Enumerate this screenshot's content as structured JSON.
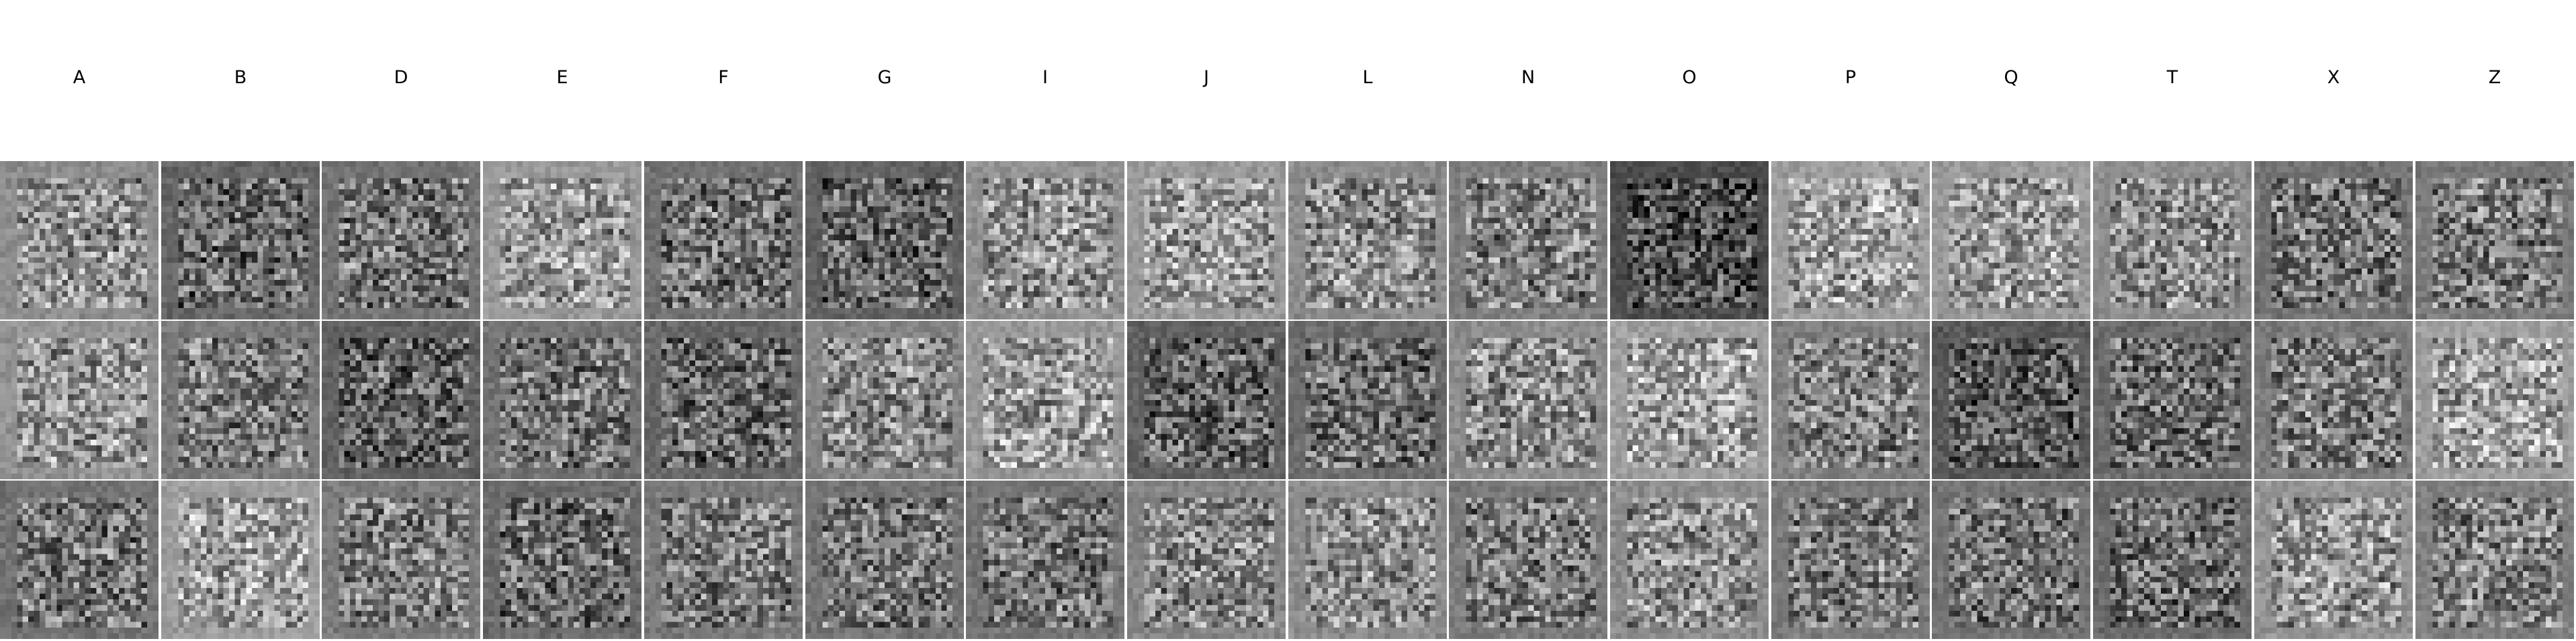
{
  "columns": [
    {
      "label": "A"
    },
    {
      "label": "B"
    },
    {
      "label": "D"
    },
    {
      "label": "E"
    },
    {
      "label": "F"
    },
    {
      "label": "G"
    },
    {
      "label": "I"
    },
    {
      "label": "J"
    },
    {
      "label": "L"
    },
    {
      "label": "N"
    },
    {
      "label": "O"
    },
    {
      "label": "P"
    },
    {
      "label": "Q"
    },
    {
      "label": "T"
    },
    {
      "label": "X"
    },
    {
      "label": "Z"
    }
  ],
  "rows": 3,
  "tile_pixels": 28,
  "colors": {
    "background": "#ffffff",
    "label_text": "#000000",
    "separator": "#ffffff"
  },
  "tile_mean_brightness": [
    [
      0.55,
      0.4,
      0.45,
      0.6,
      0.44,
      0.38,
      0.57,
      0.6,
      0.55,
      0.5,
      0.3,
      0.62,
      0.6,
      0.55,
      0.45,
      0.48
    ],
    [
      0.58,
      0.48,
      0.38,
      0.45,
      0.4,
      0.52,
      0.6,
      0.38,
      0.42,
      0.55,
      0.62,
      0.5,
      0.35,
      0.42,
      0.48,
      0.62
    ],
    [
      0.45,
      0.62,
      0.48,
      0.42,
      0.48,
      0.45,
      0.45,
      0.52,
      0.55,
      0.48,
      0.55,
      0.48,
      0.45,
      0.42,
      0.58,
      0.5
    ]
  ]
}
